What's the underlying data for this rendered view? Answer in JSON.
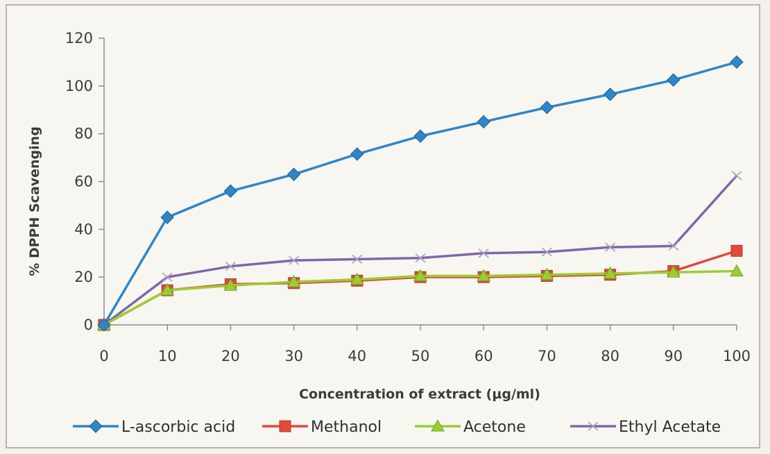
{
  "chart_data": {
    "type": "line",
    "title": "",
    "xlabel": "Concentration of extract (µg/ml)",
    "ylabel": "% DPPH Scavenging",
    "x": [
      0,
      10,
      20,
      30,
      40,
      50,
      60,
      70,
      80,
      90,
      100
    ],
    "xlim": [
      0,
      100
    ],
    "ylim": [
      0,
      120
    ],
    "yticks": [
      "0",
      "20",
      "40",
      "60",
      "80",
      "100",
      "120"
    ],
    "xticks": [
      "0",
      "10",
      "20",
      "30",
      "40",
      "50",
      "60",
      "70",
      "80",
      "90",
      "100"
    ],
    "grid": false,
    "legend_position": "bottom",
    "series": [
      {
        "name": "L-ascorbic acid",
        "color": "#2e86c9",
        "marker": "diamond",
        "values": [
          0,
          45,
          56,
          63,
          71.5,
          79,
          85,
          91,
          96.5,
          102.5,
          110
        ]
      },
      {
        "name": "Methanol",
        "color": "#e2493a",
        "marker": "square",
        "values": [
          0,
          14.5,
          17,
          17.5,
          18.5,
          20,
          20,
          20.5,
          21,
          22.5,
          31
        ]
      },
      {
        "name": "Acetone",
        "color": "#9acd32",
        "marker": "triangle",
        "values": [
          0,
          14.5,
          16.5,
          18,
          19,
          20.5,
          20.5,
          21,
          21.5,
          22,
          22.5
        ]
      },
      {
        "name": "Ethyl Acetate",
        "color": "#8066a8",
        "marker": "x",
        "values": [
          0,
          20,
          24.5,
          27,
          27.5,
          28,
          30,
          30.5,
          32.5,
          33,
          62.5
        ]
      }
    ]
  }
}
